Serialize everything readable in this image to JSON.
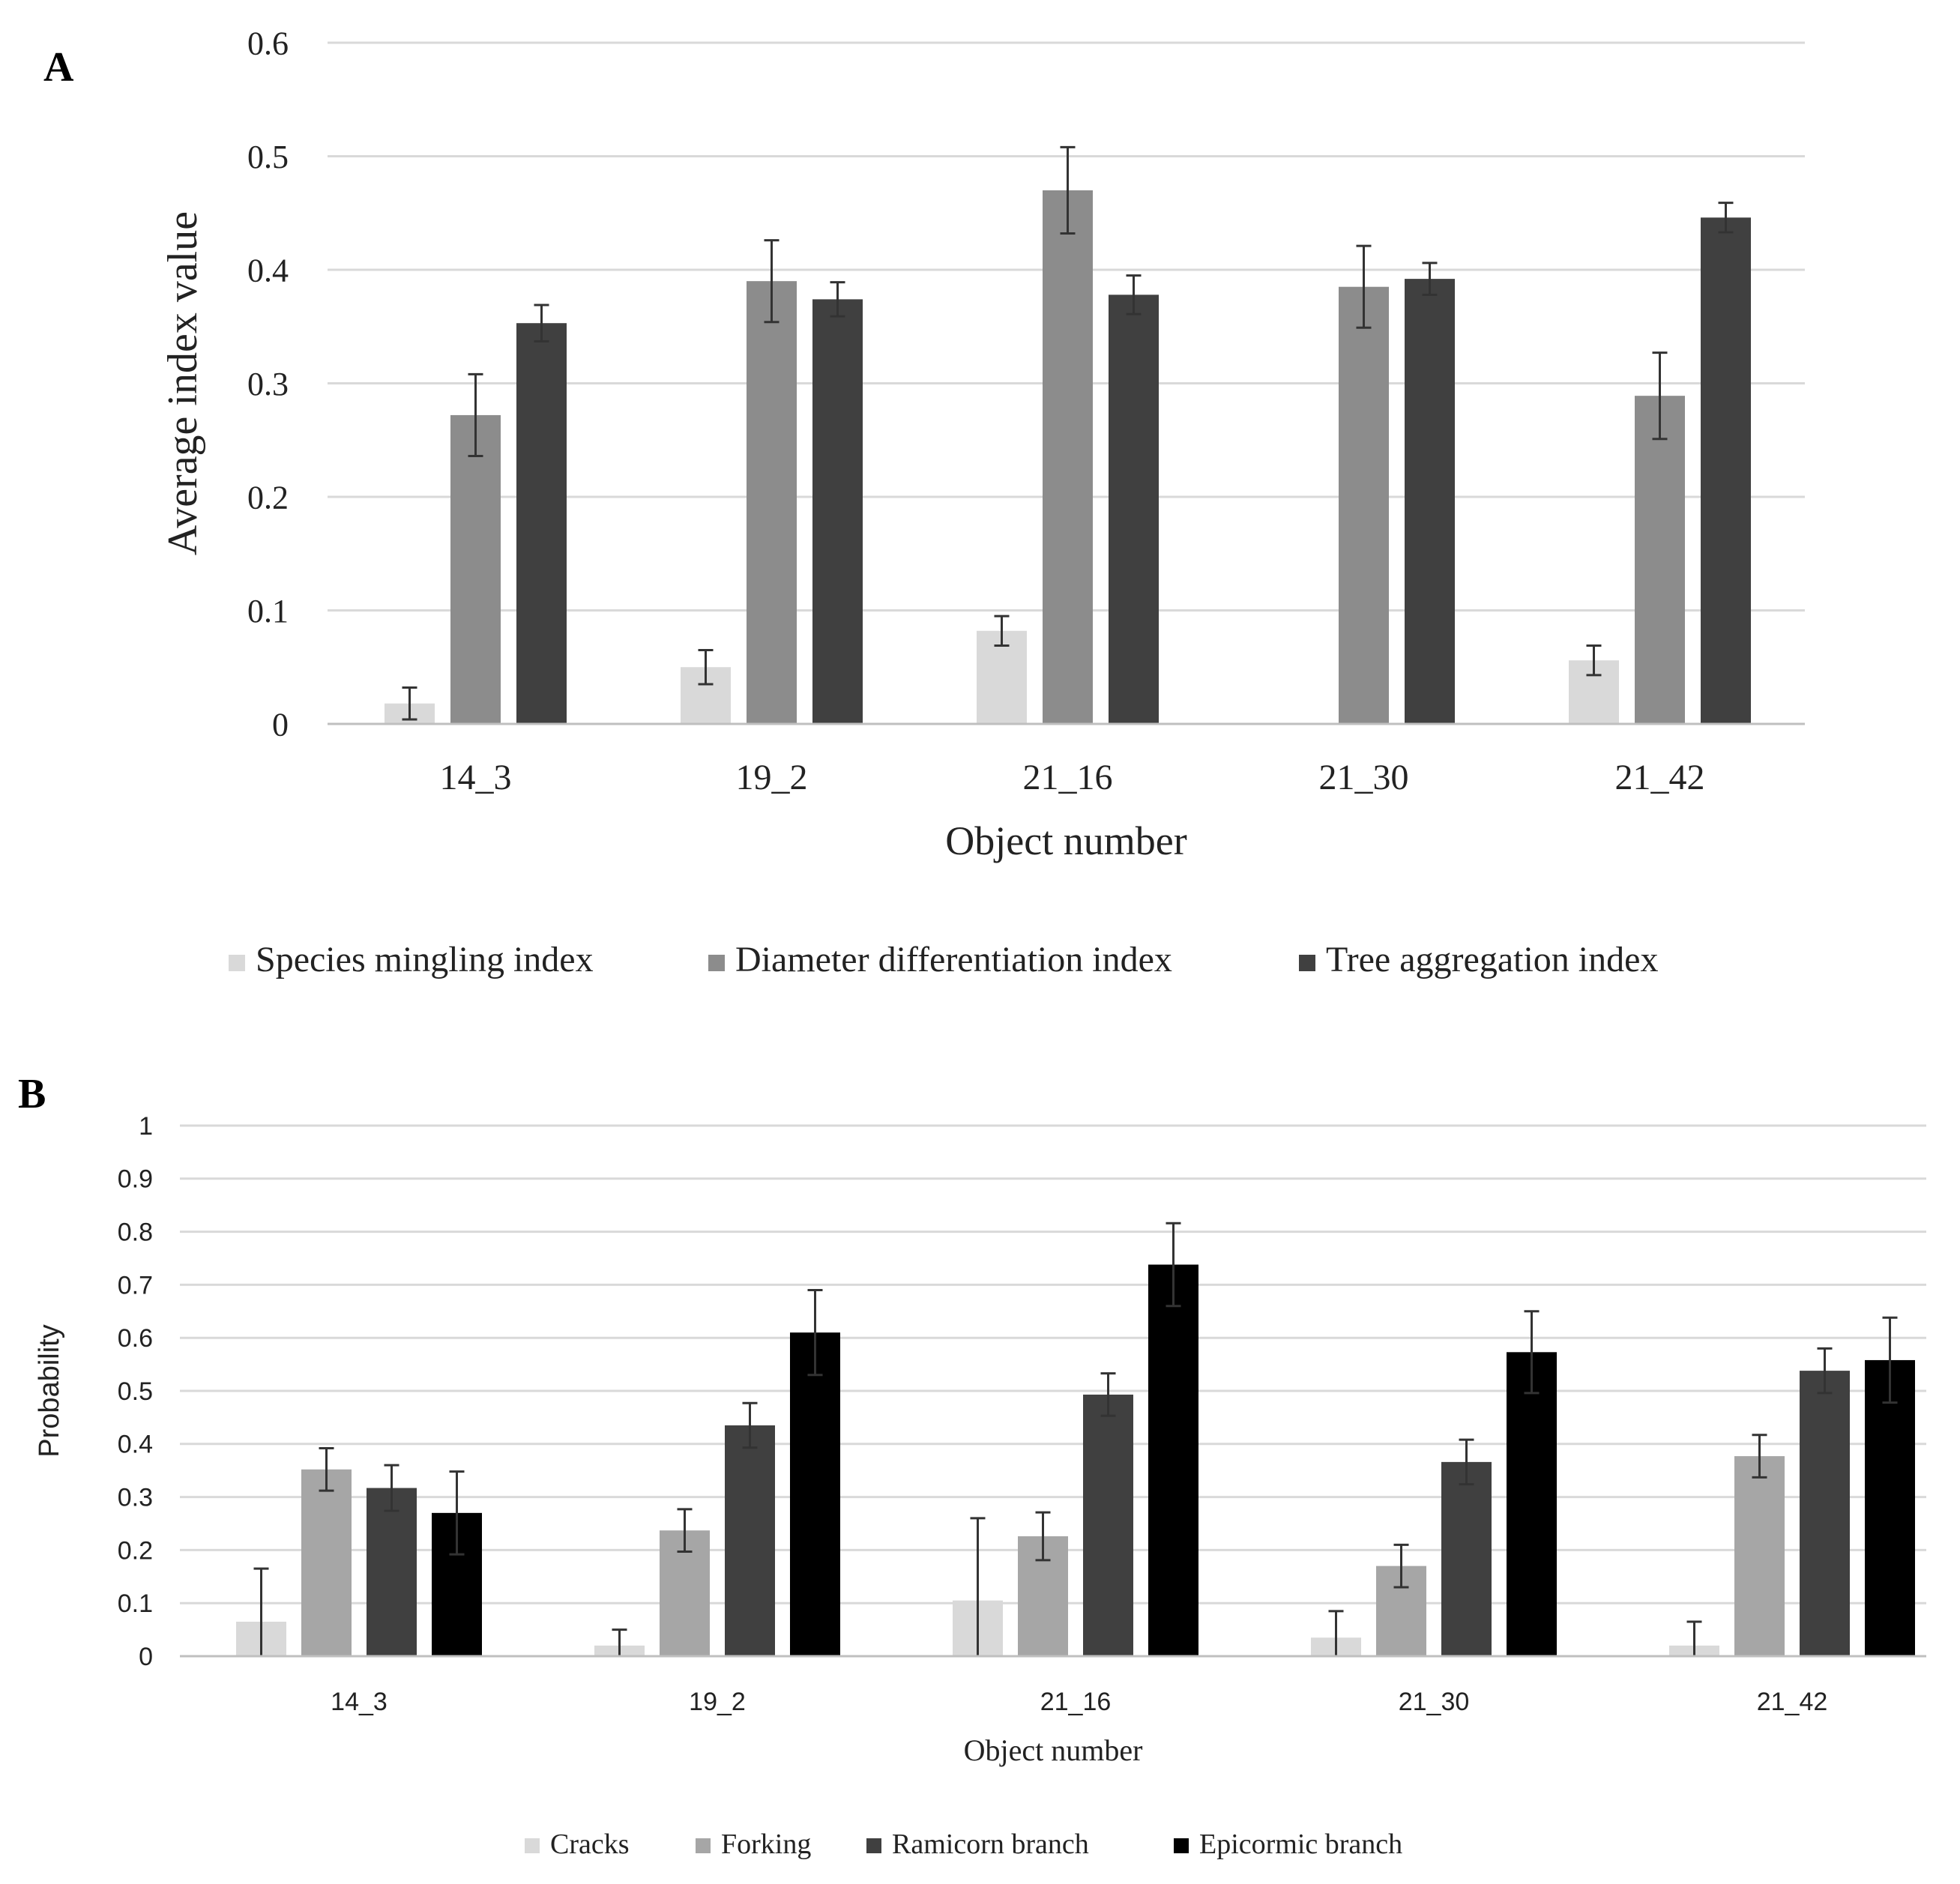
{
  "chart_data": [
    {
      "panel_label": "A",
      "type": "bar",
      "title": "",
      "xlabel": "Object number",
      "ylabel": "Average index value",
      "ylim": [
        0,
        0.6
      ],
      "yticks": [
        0,
        0.1,
        0.2,
        0.3,
        0.4,
        0.5,
        0.6
      ],
      "ytick_labels": [
        "0",
        "0.1",
        "0.2",
        "0.3",
        "0.4",
        "0.5",
        "0.6"
      ],
      "grid": true,
      "legend_position": "bottom",
      "categories": [
        "14_3",
        "19_2",
        "21_16",
        "21_30",
        "21_42"
      ],
      "series": [
        {
          "name": "Species mingling index",
          "color": "#d9d9d9",
          "values": [
            0.018,
            0.05,
            0.082,
            0.0,
            0.056
          ],
          "errors": [
            0.014,
            0.015,
            0.013,
            0.0,
            0.013
          ]
        },
        {
          "name": "Diameter differentiation index",
          "color": "#8c8c8c",
          "values": [
            0.272,
            0.39,
            0.47,
            0.385,
            0.289
          ],
          "errors": [
            0.036,
            0.036,
            0.038,
            0.036,
            0.038
          ]
        },
        {
          "name": "Tree aggregation index",
          "color": "#404040",
          "values": [
            0.353,
            0.374,
            0.378,
            0.392,
            0.446
          ],
          "errors": [
            0.016,
            0.015,
            0.017,
            0.014,
            0.013
          ]
        }
      ]
    },
    {
      "panel_label": "B",
      "type": "bar",
      "title": "",
      "xlabel": "Object number",
      "ylabel": "Probability",
      "ylim": [
        0,
        1
      ],
      "yticks": [
        0,
        0.1,
        0.2,
        0.3,
        0.4,
        0.5,
        0.6,
        0.7,
        0.8,
        0.9,
        1
      ],
      "ytick_labels": [
        "0",
        "0.1",
        "0.2",
        "0.3",
        "0.4",
        "0.5",
        "0.6",
        "0.7",
        "0.8",
        "0.9",
        "1"
      ],
      "grid": true,
      "legend_position": "bottom",
      "categories": [
        "14_3",
        "19_2",
        "21_16",
        "21_30",
        "21_42"
      ],
      "series": [
        {
          "name": "Cracks",
          "color": "#d9d9d9",
          "values": [
            0.065,
            0.02,
            0.105,
            0.035,
            0.02
          ],
          "errors": [
            0.1,
            0.03,
            0.155,
            0.05,
            0.045
          ]
        },
        {
          "name": "Forking",
          "color": "#a6a6a6",
          "values": [
            0.352,
            0.237,
            0.226,
            0.17,
            0.377
          ],
          "errors": [
            0.04,
            0.04,
            0.045,
            0.04,
            0.04
          ]
        },
        {
          "name": "Ramicorn branch",
          "color": "#404040",
          "values": [
            0.317,
            0.435,
            0.493,
            0.366,
            0.538
          ],
          "errors": [
            0.043,
            0.042,
            0.04,
            0.042,
            0.042
          ]
        },
        {
          "name": "Epicormic branch",
          "color": "#000000",
          "values": [
            0.27,
            0.61,
            0.738,
            0.573,
            0.558
          ],
          "errors": [
            0.078,
            0.08,
            0.078,
            0.077,
            0.08
          ]
        }
      ]
    }
  ]
}
